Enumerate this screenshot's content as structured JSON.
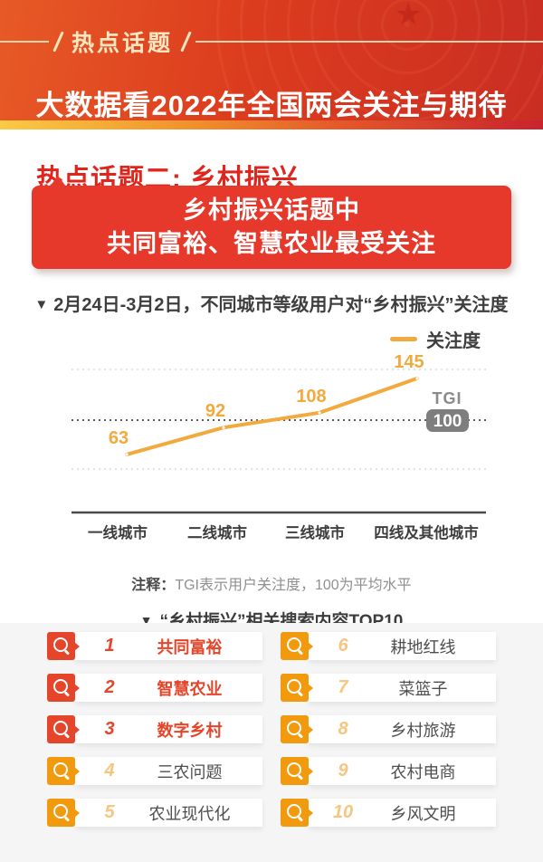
{
  "header": {
    "badge_label": "热点话题",
    "title": "大数据看2022年全国两会关注与期待"
  },
  "section": {
    "heading": "热点话题二: 乡村振兴",
    "banner_line1": "乡村振兴话题中",
    "banner_line2": "共同富裕、智慧农业最受关注"
  },
  "chart": {
    "marker": "▼",
    "title": "2月24日-3月2日，不同城市等级用户对“乡村振兴”关注度",
    "legend_label": "关注度",
    "tgi_label": "TGI",
    "tgi_value": "100",
    "note_label": "注释：",
    "note_text": "TGI表示用户关注度，100为平均水平"
  },
  "chart_data": {
    "type": "line",
    "title": "2月24日-3月2日，不同城市等级用户对“乡村振兴”关注度",
    "categories": [
      "一线城市",
      "二线城市",
      "三线城市",
      "四线及其他城市"
    ],
    "series": [
      {
        "name": "关注度",
        "values": [
          63,
          92,
          108,
          145
        ]
      }
    ],
    "baseline": {
      "label": "TGI",
      "value": 100,
      "note": "100为平均水平"
    },
    "ylim": [
      40,
      160
    ],
    "grid": "dotted",
    "legend_position": "top-right",
    "line_color": "#F2A93D",
    "label_color": "#F2A93D"
  },
  "top10": {
    "heading": "“乡村振兴”相关搜索内容TOP10",
    "marker": "▼",
    "items": [
      {
        "rank": "1",
        "term": "共同富裕",
        "highlight": true
      },
      {
        "rank": "2",
        "term": "智慧农业",
        "highlight": true
      },
      {
        "rank": "3",
        "term": "数字乡村",
        "highlight": true
      },
      {
        "rank": "4",
        "term": "三农问题",
        "highlight": false
      },
      {
        "rank": "5",
        "term": "农业现代化",
        "highlight": false
      },
      {
        "rank": "6",
        "term": "耕地红线",
        "highlight": false
      },
      {
        "rank": "7",
        "term": "菜篮子",
        "highlight": false
      },
      {
        "rank": "8",
        "term": "乡村旅游",
        "highlight": false
      },
      {
        "rank": "9",
        "term": "农村电商",
        "highlight": false
      },
      {
        "rank": "10",
        "term": "乡风文明",
        "highlight": false
      }
    ]
  },
  "colors": {
    "header_red": "#DC3C1E",
    "banner_red": "#E6392B",
    "accent_red": "#E5452A",
    "accent_orange": "#F19A0E",
    "line_orange": "#F2A93D",
    "tgi_badge_gray": "#7E7E7E"
  }
}
